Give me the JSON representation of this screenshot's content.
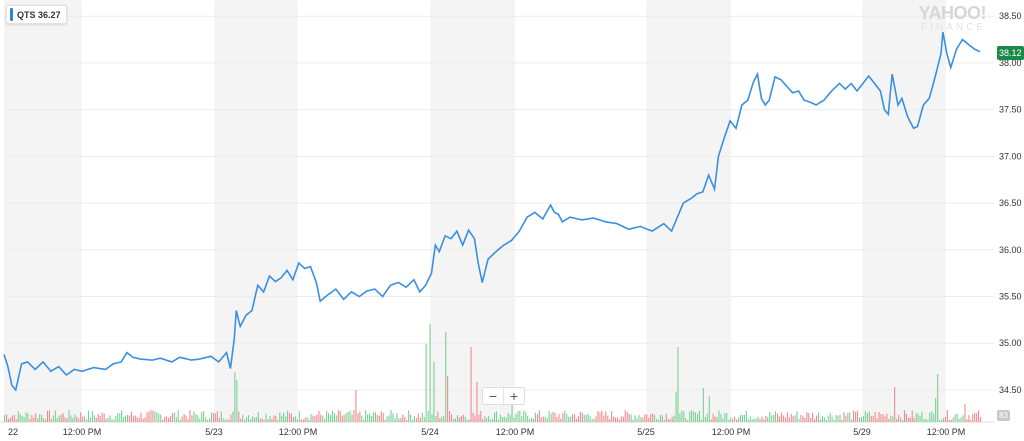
{
  "legend": {
    "text": "QTS 36.27",
    "color": "#2b86dd"
  },
  "watermark": {
    "main": "YAHOO!",
    "sub": "FINANCE"
  },
  "last_price_tag": "38.12",
  "volume_tag": "83",
  "zoom": {
    "minus": "−",
    "plus": "+"
  },
  "colors": {
    "line": "#3a8fe0",
    "vol_up": "#7ccf94",
    "vol_down": "#f08c8c",
    "shade": "#f4f4f4",
    "grid": "#ececec",
    "price_tag": "#1a8a4b"
  },
  "chart_data": {
    "type": "line",
    "symbol": "QTS",
    "x_tick_labels": [
      "22",
      "12:00 PM",
      "5/23",
      "12:00 PM",
      "5/24",
      "12:00 PM",
      "5/25",
      "12:00 PM",
      "5/29",
      "12:00 PM"
    ],
    "y_tick_labels": [
      "38.50",
      "38.00",
      "37.50",
      "37.00",
      "36.50",
      "36.00",
      "35.50",
      "35.00",
      "34.50"
    ],
    "ylim": [
      34.2,
      38.5
    ],
    "grid": true,
    "price_anchors": [
      [
        0,
        34.88
      ],
      [
        2,
        34.75
      ],
      [
        4,
        34.55
      ],
      [
        6,
        34.5
      ],
      [
        9,
        34.78
      ],
      [
        12,
        34.8
      ],
      [
        16,
        34.72
      ],
      [
        20,
        34.8
      ],
      [
        24,
        34.7
      ],
      [
        28,
        34.75
      ],
      [
        32,
        34.66
      ],
      [
        36,
        34.72
      ],
      [
        40,
        34.7
      ],
      [
        46,
        34.74
      ],
      [
        52,
        34.72
      ],
      [
        56,
        34.78
      ],
      [
        60,
        34.8
      ],
      [
        63,
        34.9
      ],
      [
        66,
        34.85
      ],
      [
        70,
        34.83
      ],
      [
        76,
        34.82
      ],
      [
        80,
        34.84
      ],
      [
        86,
        34.8
      ],
      [
        90,
        34.85
      ],
      [
        96,
        34.82
      ],
      [
        100,
        34.83
      ],
      [
        106,
        34.86
      ],
      [
        110,
        34.8
      ],
      [
        114,
        34.9
      ],
      [
        116,
        34.73
      ],
      [
        118,
        35.05
      ],
      [
        119,
        35.35
      ],
      [
        121,
        35.18
      ],
      [
        124,
        35.3
      ],
      [
        127,
        35.35
      ],
      [
        130,
        35.62
      ],
      [
        133,
        35.55
      ],
      [
        136,
        35.72
      ],
      [
        139,
        35.66
      ],
      [
        142,
        35.7
      ],
      [
        145,
        35.78
      ],
      [
        148,
        35.68
      ],
      [
        151,
        35.86
      ],
      [
        154,
        35.8
      ],
      [
        157,
        35.82
      ],
      [
        160,
        35.65
      ],
      [
        162,
        35.45
      ],
      [
        166,
        35.52
      ],
      [
        170,
        35.58
      ],
      [
        174,
        35.47
      ],
      [
        178,
        35.55
      ],
      [
        182,
        35.5
      ],
      [
        186,
        35.56
      ],
      [
        190,
        35.58
      ],
      [
        194,
        35.5
      ],
      [
        198,
        35.62
      ],
      [
        202,
        35.65
      ],
      [
        206,
        35.6
      ],
      [
        210,
        35.68
      ],
      [
        213,
        35.55
      ],
      [
        216,
        35.62
      ],
      [
        219,
        35.75
      ],
      [
        221,
        36.05
      ],
      [
        223,
        35.98
      ],
      [
        226,
        36.15
      ],
      [
        229,
        36.12
      ],
      [
        232,
        36.2
      ],
      [
        235,
        36.05
      ],
      [
        238,
        36.21
      ],
      [
        241,
        36.12
      ],
      [
        243,
        35.85
      ],
      [
        245,
        35.65
      ],
      [
        248,
        35.9
      ],
      [
        252,
        35.98
      ],
      [
        256,
        36.05
      ],
      [
        260,
        36.1
      ],
      [
        264,
        36.2
      ],
      [
        268,
        36.35
      ],
      [
        272,
        36.4
      ],
      [
        276,
        36.33
      ],
      [
        280,
        36.48
      ],
      [
        282,
        36.4
      ],
      [
        284,
        36.38
      ],
      [
        286,
        36.3
      ],
      [
        290,
        36.35
      ],
      [
        296,
        36.32
      ],
      [
        302,
        36.34
      ],
      [
        308,
        36.3
      ],
      [
        314,
        36.28
      ],
      [
        320,
        36.22
      ],
      [
        326,
        36.25
      ],
      [
        332,
        36.2
      ],
      [
        338,
        36.28
      ],
      [
        342,
        36.2
      ],
      [
        345,
        36.35
      ],
      [
        348,
        36.5
      ],
      [
        352,
        36.55
      ],
      [
        355,
        36.6
      ],
      [
        358,
        36.62
      ],
      [
        361,
        36.8
      ],
      [
        364,
        36.65
      ],
      [
        366,
        37.0
      ],
      [
        369,
        37.2
      ],
      [
        372,
        37.38
      ],
      [
        375,
        37.3
      ],
      [
        378,
        37.55
      ],
      [
        381,
        37.6
      ],
      [
        384,
        37.8
      ],
      [
        386,
        37.88
      ],
      [
        388,
        37.62
      ],
      [
        390,
        37.55
      ],
      [
        392,
        37.6
      ],
      [
        395,
        37.85
      ],
      [
        398,
        37.82
      ],
      [
        401,
        37.75
      ],
      [
        404,
        37.68
      ],
      [
        407,
        37.7
      ],
      [
        410,
        37.6
      ],
      [
        413,
        37.58
      ],
      [
        416,
        37.55
      ],
      [
        420,
        37.6
      ],
      [
        424,
        37.7
      ],
      [
        428,
        37.78
      ],
      [
        431,
        37.72
      ],
      [
        434,
        37.78
      ],
      [
        437,
        37.7
      ],
      [
        440,
        37.78
      ],
      [
        443,
        37.86
      ],
      [
        446,
        37.78
      ],
      [
        449,
        37.7
      ],
      [
        451,
        37.5
      ],
      [
        453,
        37.45
      ],
      [
        455,
        37.88
      ],
      [
        458,
        37.55
      ],
      [
        460,
        37.62
      ],
      [
        463,
        37.42
      ],
      [
        466,
        37.3
      ],
      [
        468,
        37.32
      ],
      [
        471,
        37.55
      ],
      [
        474,
        37.62
      ],
      [
        477,
        37.85
      ],
      [
        480,
        38.1
      ],
      [
        481,
        38.33
      ],
      [
        483,
        38.1
      ],
      [
        485,
        37.95
      ],
      [
        488,
        38.15
      ],
      [
        491,
        38.25
      ],
      [
        494,
        38.2
      ],
      [
        497,
        38.15
      ],
      [
        500,
        38.12
      ]
    ],
    "volume_note": "volume bars along bottom; tallest near 5/24 session open"
  }
}
